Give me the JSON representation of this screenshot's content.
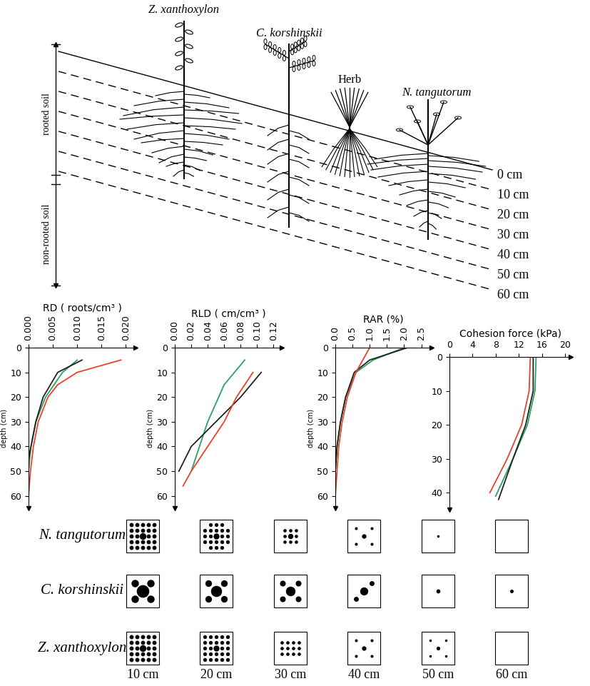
{
  "slope_diagram": {
    "plants": [
      "Z. xanthoxylon",
      "C. korshinskii",
      "Herb",
      "N. tangutorum"
    ],
    "depth_labels": [
      "0 cm",
      "10 cm",
      "20 cm",
      "30 cm",
      "40 cm",
      "50 cm",
      "60 cm"
    ],
    "zones": [
      "rooted soil",
      "non-rooted soil"
    ]
  },
  "chart_data": [
    {
      "type": "line",
      "xlabel": "RD ( roots/cm³ )",
      "ylabel": "depth (cm)",
      "xlim": [
        0,
        0.022
      ],
      "xticks": [
        {
          "value": 0,
          "label": "0.000"
        },
        0.005,
        {
          "value": 0.01,
          "label": "0.010"
        },
        0.015,
        {
          "value": 0.02,
          "label": "0.020"
        }
      ],
      "ylim": [
        0,
        65
      ],
      "yticks": [
        0,
        10,
        20,
        30,
        40,
        50,
        60
      ],
      "series": [
        {
          "color": "#2ca25f",
          "depth": [
            5,
            10,
            20,
            30,
            40,
            50
          ],
          "values": [
            0.01,
            0.007,
            0.0035,
            0.0015,
            0.0005,
            0
          ]
        },
        {
          "color": "#222222",
          "depth": [
            5,
            10,
            20,
            30,
            40,
            45
          ],
          "values": [
            0.011,
            0.006,
            0.003,
            0.0015,
            0.0005,
            0
          ]
        },
        {
          "color": "#e8412c",
          "depth": [
            5,
            10,
            15,
            20,
            30,
            40,
            50,
            60
          ],
          "values": [
            0.019,
            0.01,
            0.006,
            0.004,
            0.002,
            0.001,
            0.0004,
            0
          ]
        }
      ]
    },
    {
      "type": "line",
      "xlabel": "RLD ( cm/cm³ )",
      "ylabel": "depth (cm)",
      "xlim": [
        0,
        0.13
      ],
      "xticks": [
        {
          "value": 0,
          "label": "0.00"
        },
        0.02,
        0.04,
        0.06,
        0.08,
        {
          "value": 0.1,
          "label": "0.10"
        },
        0.12
      ],
      "ylim": [
        0,
        65
      ],
      "yticks": [
        0,
        10,
        20,
        30,
        40,
        50,
        60
      ],
      "series": [
        {
          "color": "#2ca25f",
          "depth": [
            5,
            15,
            30,
            45,
            50
          ],
          "values": [
            0.085,
            0.06,
            0.04,
            0.025,
            0.02
          ]
        },
        {
          "color": "#222222",
          "depth": [
            10,
            20,
            30,
            40,
            50
          ],
          "values": [
            0.105,
            0.08,
            0.05,
            0.02,
            0.005
          ]
        },
        {
          "color": "#e8412c",
          "depth": [
            10,
            20,
            30,
            40,
            50,
            56
          ],
          "values": [
            0.095,
            0.075,
            0.06,
            0.04,
            0.02,
            0.01
          ]
        }
      ]
    },
    {
      "type": "line",
      "xlabel": "RAR (%)",
      "ylabel": "depth (cm)",
      "xlim": [
        0,
        2.8
      ],
      "xticks": [
        0.0,
        0.5,
        1.0,
        1.5,
        2.0,
        2.5
      ],
      "ylim": [
        0,
        65
      ],
      "yticks": [
        0,
        10,
        20,
        30,
        40,
        50,
        60
      ],
      "series": [
        {
          "color": "#2ca25f",
          "depth": [
            0,
            5,
            10,
            20,
            30,
            40,
            50
          ],
          "values": [
            2.0,
            1.1,
            0.6,
            0.3,
            0.15,
            0.05,
            0
          ]
        },
        {
          "color": "#222222",
          "depth": [
            0,
            5,
            10,
            20,
            30,
            40,
            50
          ],
          "values": [
            2.1,
            1.0,
            0.55,
            0.3,
            0.15,
            0.05,
            0
          ]
        },
        {
          "color": "#e8412c",
          "depth": [
            0,
            10,
            20,
            30,
            40,
            50,
            60
          ],
          "values": [
            1.0,
            0.6,
            0.35,
            0.2,
            0.1,
            0.05,
            0
          ]
        }
      ]
    },
    {
      "type": "line",
      "xlabel": "Cohesion force (kPa)",
      "xlim": [
        0,
        21
      ],
      "xticks": [
        0,
        4,
        8,
        12,
        16,
        20
      ],
      "ylim": [
        0,
        45
      ],
      "yticks": [
        0,
        10,
        20,
        30,
        40
      ],
      "series": [
        {
          "color": "#2ca25f",
          "depth": [
            0,
            10,
            20,
            30,
            41
          ],
          "values": [
            15,
            14.8,
            13.5,
            11,
            8
          ]
        },
        {
          "color": "#222222",
          "depth": [
            0,
            10,
            20,
            30,
            42
          ],
          "values": [
            14.5,
            14.5,
            13.2,
            11,
            8.5
          ]
        },
        {
          "color": "#e8412c",
          "depth": [
            0,
            10,
            20,
            30,
            40
          ],
          "values": [
            14,
            13.8,
            12.5,
            10,
            7
          ]
        }
      ]
    }
  ],
  "root_cross_sections": {
    "columns": [
      "10 cm",
      "20 cm",
      "30 cm",
      "40 cm",
      "50 cm",
      "60 cm"
    ],
    "rows": [
      {
        "label": "N. tangutorum",
        "dots": [
          25,
          21,
          9,
          5,
          1,
          0
        ]
      },
      {
        "label": "C. korshinskii",
        "dots": [
          5,
          5,
          5,
          3,
          1,
          1
        ]
      },
      {
        "label": "Z. xanthoxylon",
        "dots": [
          25,
          25,
          12,
          5,
          5,
          0
        ]
      }
    ]
  }
}
